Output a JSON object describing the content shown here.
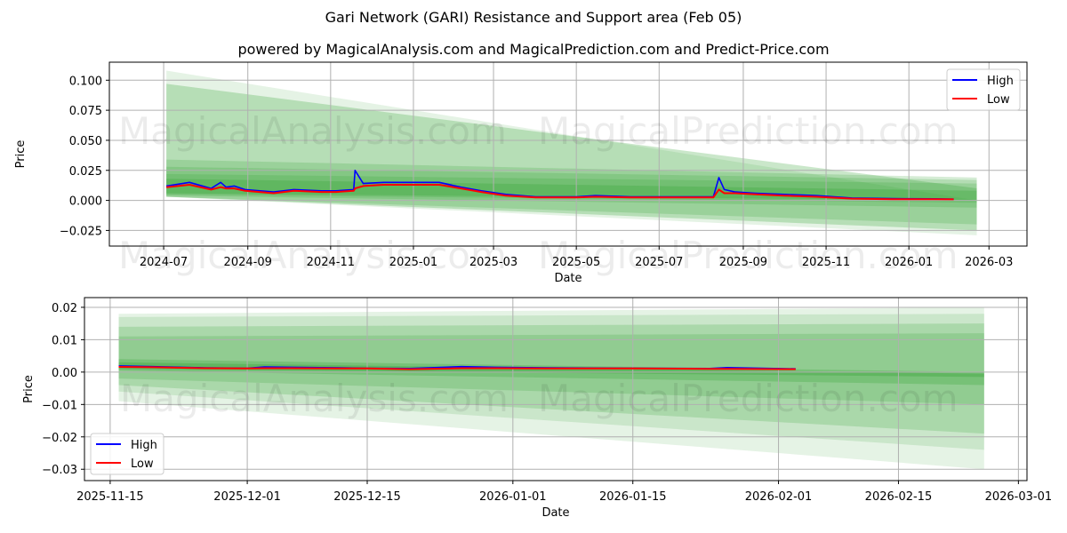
{
  "header": {
    "title": "Gari Network (GARI) Resistance and Support area (Feb 05)",
    "subtitle": "powered by MagicalAnalysis.com and MagicalPrediction.com and Predict-Price.com"
  },
  "watermarks": [
    "MagicalAnalysis.com",
    "MagicalPrediction.com"
  ],
  "colors": {
    "high": "#0000ff",
    "low": "#ff0000",
    "band": "#2ca02c",
    "grid": "#b0b0b0"
  },
  "chart_data": [
    {
      "type": "line",
      "title": "",
      "xlabel": "Date",
      "ylabel": "Price",
      "ylim": [
        -0.038,
        0.115
      ],
      "xlim": [
        "2024-05-22",
        "2026-03-29"
      ],
      "grid": true,
      "legend_position": "upper right",
      "x_ticks": [
        "2024-07",
        "2024-09",
        "2024-11",
        "2025-01",
        "2025-03",
        "2025-05",
        "2025-07",
        "2025-09",
        "2025-11",
        "2026-01",
        "2026-03"
      ],
      "y_ticks": [
        0.1,
        0.075,
        0.05,
        0.025,
        0.0,
        -0.025
      ],
      "y_tick_labels": [
        "0.100",
        "0.075",
        "0.050",
        "0.025",
        "0.000",
        "−0.025"
      ],
      "legend": [
        "High",
        "Low"
      ],
      "series": [
        {
          "name": "High",
          "color": "#0000ff",
          "x": [
            "2024-07-03",
            "2024-07-20",
            "2024-08-05",
            "2024-08-12",
            "2024-08-16",
            "2024-08-22",
            "2024-08-30",
            "2024-09-20",
            "2024-10-05",
            "2024-10-25",
            "2024-11-05",
            "2024-11-18",
            "2024-11-19",
            "2024-11-25",
            "2024-12-10",
            "2025-01-01",
            "2025-01-20",
            "2025-02-05",
            "2025-02-20",
            "2025-03-10",
            "2025-04-01",
            "2025-05-01",
            "2025-05-15",
            "2025-06-10",
            "2025-07-10",
            "2025-08-01",
            "2025-08-10",
            "2025-08-14",
            "2025-08-18",
            "2025-08-26",
            "2025-09-10",
            "2025-10-01",
            "2025-10-25",
            "2025-11-20",
            "2025-12-20",
            "2026-01-20",
            "2026-02-03"
          ],
          "values": [
            0.012,
            0.015,
            0.01,
            0.015,
            0.011,
            0.012,
            0.009,
            0.007,
            0.009,
            0.008,
            0.008,
            0.009,
            0.025,
            0.014,
            0.015,
            0.015,
            0.015,
            0.011,
            0.008,
            0.005,
            0.003,
            0.003,
            0.004,
            0.003,
            0.003,
            0.003,
            0.003,
            0.019,
            0.009,
            0.007,
            0.006,
            0.005,
            0.004,
            0.002,
            0.0015,
            0.0013,
            0.001
          ]
        },
        {
          "name": "Low",
          "color": "#ff0000",
          "x": [
            "2024-07-03",
            "2024-07-20",
            "2024-08-05",
            "2024-08-12",
            "2024-08-16",
            "2024-08-22",
            "2024-08-30",
            "2024-09-20",
            "2024-10-05",
            "2024-10-25",
            "2024-11-05",
            "2024-11-18",
            "2024-11-19",
            "2024-11-25",
            "2024-12-10",
            "2025-01-01",
            "2025-01-20",
            "2025-02-05",
            "2025-02-20",
            "2025-03-10",
            "2025-04-01",
            "2025-05-01",
            "2025-05-15",
            "2025-06-10",
            "2025-07-10",
            "2025-08-01",
            "2025-08-10",
            "2025-08-14",
            "2025-08-18",
            "2025-08-26",
            "2025-09-10",
            "2025-10-01",
            "2025-10-25",
            "2025-11-20",
            "2025-12-20",
            "2026-01-20",
            "2026-02-03"
          ],
          "values": [
            0.011,
            0.013,
            0.009,
            0.011,
            0.01,
            0.01,
            0.008,
            0.006,
            0.008,
            0.007,
            0.007,
            0.008,
            0.01,
            0.012,
            0.013,
            0.013,
            0.013,
            0.01,
            0.007,
            0.004,
            0.0025,
            0.0025,
            0.003,
            0.0025,
            0.0025,
            0.0025,
            0.0025,
            0.009,
            0.006,
            0.006,
            0.005,
            0.004,
            0.003,
            0.0015,
            0.001,
            0.001,
            0.0009
          ]
        }
      ],
      "bands": [
        {
          "x0": "2024-07-03",
          "x1": "2026-02-20",
          "top0": 0.108,
          "top1": 0.0,
          "bot0": 0.003,
          "bot1": -0.029,
          "opacity": 0.12
        },
        {
          "x0": "2024-07-03",
          "x1": "2026-02-20",
          "top0": 0.097,
          "top1": 0.01,
          "bot0": 0.003,
          "bot1": -0.025,
          "opacity": 0.25
        },
        {
          "x0": "2024-07-03",
          "x1": "2026-02-20",
          "top0": 0.034,
          "top1": 0.019,
          "bot0": 0.003,
          "bot1": -0.02,
          "opacity": 0.2
        },
        {
          "x0": "2024-07-03",
          "x1": "2026-02-20",
          "top0": 0.028,
          "top1": 0.017,
          "bot0": 0.004,
          "bot1": -0.006,
          "opacity": 0.2
        },
        {
          "x0": "2024-07-03",
          "x1": "2026-02-20",
          "top0": 0.022,
          "top1": 0.014,
          "bot0": 0.005,
          "bot1": -0.002,
          "opacity": 0.2
        },
        {
          "x0": "2024-07-03",
          "x1": "2026-02-20",
          "top0": 0.018,
          "top1": 0.008,
          "bot0": 0.006,
          "bot1": 0.0,
          "opacity": 0.25
        }
      ]
    },
    {
      "type": "line",
      "title": "",
      "xlabel": "Date",
      "ylabel": "Price",
      "ylim": [
        -0.0335,
        0.023
      ],
      "xlim": [
        "2025-11-12",
        "2026-03-02"
      ],
      "grid": true,
      "legend_position": "lower left",
      "x_ticks": [
        "2025-11-15",
        "2025-12-01",
        "2025-12-15",
        "2026-01-01",
        "2026-01-15",
        "2026-02-01",
        "2026-02-15",
        "2026-03-01"
      ],
      "y_ticks": [
        0.02,
        0.01,
        0.0,
        -0.01,
        -0.02,
        -0.03
      ],
      "y_tick_labels": [
        "0.02",
        "0.01",
        "0.00",
        "−0.01",
        "−0.02",
        "−0.03"
      ],
      "legend": [
        "High",
        "Low"
      ],
      "series": [
        {
          "name": "High",
          "color": "#0000ff",
          "x": [
            "2025-11-16",
            "2025-11-20",
            "2025-11-26",
            "2025-12-01",
            "2025-12-03",
            "2025-12-06",
            "2025-12-15",
            "2025-12-20",
            "2025-12-26",
            "2025-12-30",
            "2026-01-05",
            "2026-01-15",
            "2026-01-24",
            "2026-01-26",
            "2026-02-03"
          ],
          "values": [
            0.0019,
            0.0017,
            0.0013,
            0.0012,
            0.0016,
            0.0015,
            0.0012,
            0.0011,
            0.0017,
            0.0015,
            0.0013,
            0.0012,
            0.0011,
            0.0014,
            0.001
          ]
        },
        {
          "name": "Low",
          "color": "#ff0000",
          "x": [
            "2025-11-16",
            "2025-11-20",
            "2025-11-26",
            "2025-12-01",
            "2025-12-03",
            "2025-12-06",
            "2025-12-15",
            "2025-12-20",
            "2025-12-26",
            "2025-12-30",
            "2026-01-05",
            "2026-01-15",
            "2026-01-24",
            "2026-01-26",
            "2026-02-03"
          ],
          "values": [
            0.0016,
            0.0015,
            0.0012,
            0.0011,
            0.0012,
            0.0012,
            0.0011,
            0.0009,
            0.0012,
            0.0012,
            0.0011,
            0.0011,
            0.001,
            0.001,
            0.0009
          ]
        }
      ],
      "bands": [
        {
          "x0": "2025-11-16",
          "x1": "2026-02-25",
          "top0": 0.018,
          "top1": 0.02,
          "bot0": -0.009,
          "bot1": -0.03,
          "opacity": 0.12
        },
        {
          "x0": "2025-11-16",
          "x1": "2026-02-25",
          "top0": 0.017,
          "top1": 0.018,
          "bot0": -0.006,
          "bot1": -0.024,
          "opacity": 0.15
        },
        {
          "x0": "2025-11-16",
          "x1": "2026-02-25",
          "top0": 0.014,
          "top1": 0.015,
          "bot0": -0.004,
          "bot1": -0.019,
          "opacity": 0.2
        },
        {
          "x0": "2025-11-16",
          "x1": "2026-02-25",
          "top0": 0.011,
          "top1": 0.012,
          "bot0": -0.002,
          "bot1": -0.01,
          "opacity": 0.2
        },
        {
          "x0": "2025-11-16",
          "x1": "2026-02-25",
          "top0": 0.004,
          "top1": 0.0,
          "bot0": 0.0005,
          "bot1": -0.004,
          "opacity": 0.25
        },
        {
          "x0": "2025-11-16",
          "x1": "2026-02-25",
          "top0": 0.003,
          "top1": -0.0005,
          "bot0": 0.001,
          "bot1": -0.0015,
          "opacity": 0.3
        }
      ]
    }
  ]
}
